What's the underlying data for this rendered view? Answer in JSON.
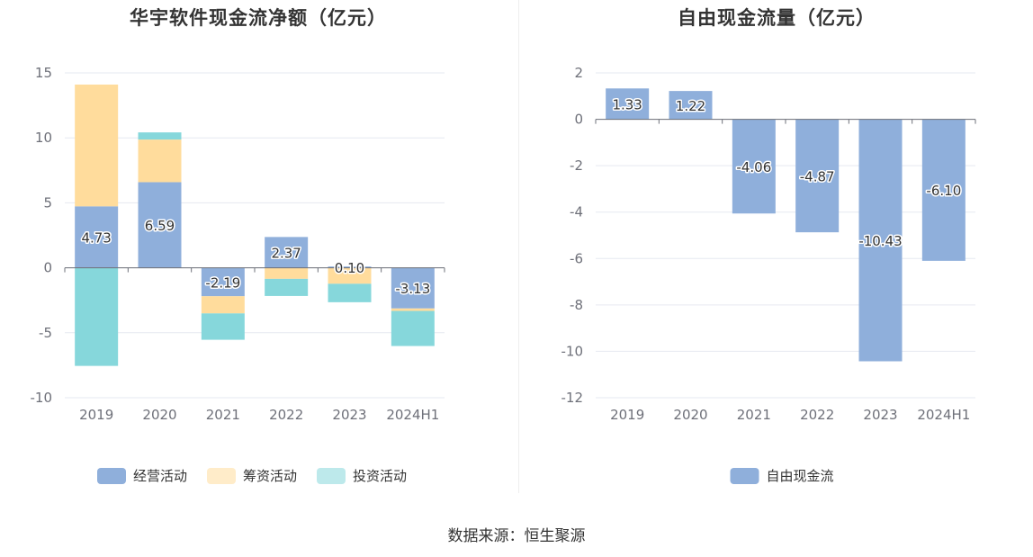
{
  "charts": [
    {
      "title": "华宇软件现金流净额（亿元）"
    },
    {
      "title": "自由现金流量（亿元）"
    }
  ],
  "source": "数据来源：恒生聚源",
  "chart_data": [
    {
      "type": "bar",
      "stacked": true,
      "title": "华宇软件现金流净额（亿元）",
      "categories": [
        "2019",
        "2020",
        "2021",
        "2022",
        "2023",
        "2024H1"
      ],
      "ylim": [
        -10,
        15
      ],
      "yticks": [
        15,
        10,
        5,
        0,
        -5,
        -10
      ],
      "grid": true,
      "legend_position": "bottom",
      "series": [
        {
          "name": "经营活动",
          "color": "#8fafdb",
          "values": [
            4.73,
            6.59,
            -2.19,
            2.37,
            0.1,
            -3.13
          ],
          "labels": [
            "4.73",
            "6.59",
            "-2.19",
            "2.37",
            "0.10",
            "-3.13"
          ]
        },
        {
          "name": "筹资活动",
          "color": "#ffdc9c",
          "values": [
            9.37,
            3.28,
            -1.32,
            -0.85,
            -1.23,
            -0.19
          ]
        },
        {
          "name": "投资活动",
          "color": "#86d7db",
          "values": [
            -7.55,
            0.55,
            -2.03,
            -1.32,
            -1.42,
            -2.7
          ]
        }
      ]
    },
    {
      "type": "bar",
      "title": "自由现金流量（亿元）",
      "categories": [
        "2019",
        "2020",
        "2021",
        "2022",
        "2023",
        "2024H1"
      ],
      "ylim": [
        -12,
        2
      ],
      "yticks": [
        2,
        0,
        -2,
        -4,
        -6,
        -8,
        -10,
        -12
      ],
      "grid": true,
      "legend_position": "bottom",
      "series": [
        {
          "name": "自由现金流",
          "color": "#8fafdb",
          "values": [
            1.33,
            1.22,
            -4.06,
            -4.87,
            -10.43,
            -6.1
          ],
          "labels": [
            "1.33",
            "1.22",
            "-4.06",
            "-4.87",
            "-10.43",
            "-6.10"
          ]
        }
      ]
    }
  ]
}
